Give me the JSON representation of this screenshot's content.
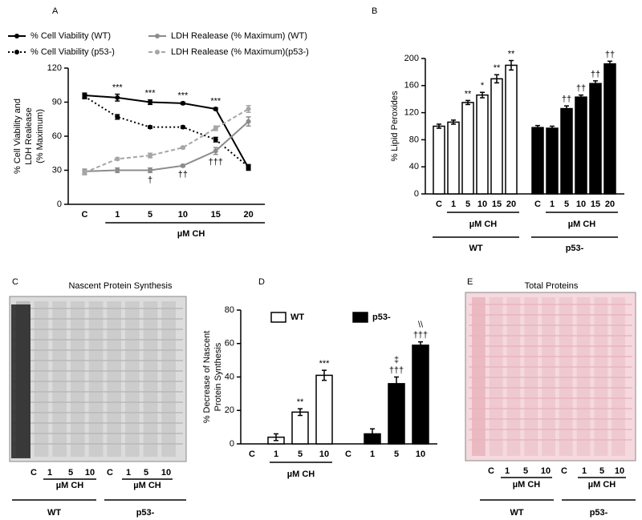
{
  "chart_data": [
    {
      "type": "line",
      "panel": "A",
      "categories": [
        "C",
        "1",
        "5",
        "10",
        "15",
        "20"
      ],
      "ylim": [
        0,
        120
      ],
      "yticks": [
        0,
        30,
        60,
        90,
        120
      ],
      "ylabel": [
        "% Cell Viability and",
        "LDH Realease",
        "(% Maximum)"
      ],
      "xlabel": "µM CH",
      "series": [
        {
          "name": "% Cell Viability (WT)",
          "color": "#000000",
          "dash": "solid",
          "values": [
            96,
            94,
            90,
            89,
            84,
            32
          ],
          "errors": [
            2,
            3,
            2,
            1,
            1,
            2
          ],
          "labels": [
            null,
            "***",
            "***",
            "***",
            "***",
            null
          ],
          "label_side": "above"
        },
        {
          "name": "% Cell Viability (p53-)",
          "color": "#000000",
          "dash": "dotted",
          "values": [
            95,
            77,
            68,
            68,
            57,
            33
          ],
          "errors": [
            2,
            2,
            1,
            1,
            2,
            2
          ]
        },
        {
          "name": "LDH Realease (% Maximum) (WT)",
          "color": "#8c8c8c",
          "dash": "solid",
          "values": [
            29,
            30,
            30,
            34,
            47,
            73
          ],
          "errors": [
            2,
            2,
            2,
            1,
            3,
            4
          ],
          "labels": [
            null,
            null,
            "†",
            "††",
            "†††",
            null
          ],
          "label_side": "below"
        },
        {
          "name": "LDH Realease (% Maximum)(p53-)",
          "color": "#a6a6a6",
          "dash": "dashed",
          "values": [
            28,
            40,
            43,
            50,
            67,
            84
          ],
          "errors": [
            2,
            1,
            2,
            1,
            2,
            3
          ]
        }
      ]
    },
    {
      "type": "bar",
      "panel": "B",
      "ylim": [
        0,
        200
      ],
      "yticks": [
        0,
        40,
        80,
        120,
        160,
        200
      ],
      "ylabel": [
        "% Lipid Peroxides"
      ],
      "legend": false,
      "groups": [
        {
          "name": "WT",
          "color": "#ffffff",
          "xlabel": "µM CH",
          "categories": [
            "C",
            "1",
            "5",
            "10",
            "15",
            "20"
          ],
          "values": [
            100,
            106,
            135,
            146,
            170,
            190
          ],
          "errors": [
            3,
            3,
            3,
            4,
            6,
            7
          ],
          "labels": [
            null,
            null,
            "**",
            "*",
            "**",
            "**"
          ]
        },
        {
          "name": "p53-",
          "color": "#000000",
          "xlabel": "µM CH",
          "categories": [
            "C",
            "1",
            "5",
            "10",
            "15",
            "20"
          ],
          "values": [
            98,
            97,
            126,
            143,
            163,
            192
          ],
          "errors": [
            3,
            3,
            4,
            3,
            4,
            4
          ],
          "labels": [
            null,
            null,
            "††",
            "††",
            "††",
            "††"
          ]
        }
      ]
    },
    {
      "type": "blot",
      "panel": "C",
      "title": "Nascent Protein Synthesis",
      "groups": [
        {
          "name": "WT",
          "xlabel": "µM CH",
          "lanes": [
            "C",
            "1",
            "5",
            "10"
          ]
        },
        {
          "name": "p53-",
          "xlabel": "µM CH",
          "lanes": [
            "C",
            "1",
            "5",
            "10"
          ]
        }
      ]
    },
    {
      "type": "bar",
      "panel": "D",
      "ylim": [
        0,
        80
      ],
      "yticks": [
        0,
        20,
        40,
        60,
        80
      ],
      "ylabel": [
        "% Decrease of Nascent",
        "Protein Synthesis"
      ],
      "legend": true,
      "groups": [
        {
          "name": "WT",
          "color": "#ffffff",
          "xlabel": "µM CH",
          "categories": [
            "C",
            "1",
            "5",
            "10"
          ],
          "values": [
            null,
            4,
            19,
            41
          ],
          "errors": [
            null,
            2,
            2,
            3
          ],
          "labels": [
            null,
            null,
            [
              "**"
            ],
            [
              "***"
            ]
          ]
        },
        {
          "name": "p53-",
          "color": "#000000",
          "categories": [
            "C",
            "1",
            "5",
            "10"
          ],
          "values": [
            null,
            6,
            36,
            59
          ],
          "errors": [
            null,
            3,
            4,
            2
          ],
          "labels": [
            null,
            null,
            [
              "‡",
              "†††"
            ],
            [
              "\\\\",
              "†††"
            ]
          ]
        }
      ]
    },
    {
      "type": "blot",
      "panel": "E",
      "title": "Total Proteins",
      "groups": [
        {
          "name": "WT",
          "xlabel": "µM CH",
          "lanes": [
            "C",
            "1",
            "5",
            "10"
          ]
        },
        {
          "name": "p53-",
          "xlabel": "µM CH",
          "lanes": [
            "C",
            "1",
            "5",
            "10"
          ]
        }
      ]
    }
  ]
}
